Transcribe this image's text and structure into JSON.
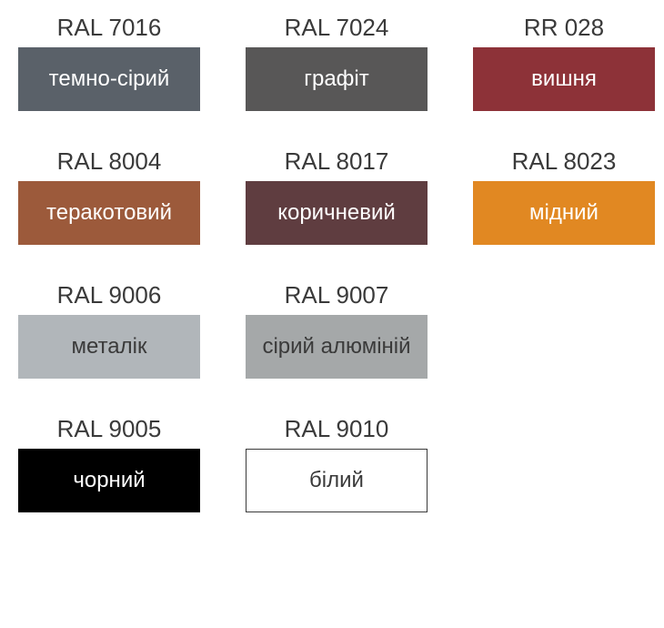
{
  "layout": {
    "columns": 3,
    "rows": 4,
    "swatch_width": 200,
    "swatch_height": 70,
    "code_fontsize": 26,
    "name_fontsize": 24,
    "code_color": "#3a3a3a",
    "background": "#ffffff"
  },
  "swatches": [
    {
      "code": "RAL 7016",
      "name": "темно-сірий",
      "bg_color": "#5a6169",
      "text_color": "#ffffff",
      "border": "none"
    },
    {
      "code": "RAL 7024",
      "name": "графіт",
      "bg_color": "#585757",
      "text_color": "#ffffff",
      "border": "none"
    },
    {
      "code": "RR 028",
      "name": "вишня",
      "bg_color": "#8d3238",
      "text_color": "#ffffff",
      "border": "none"
    },
    {
      "code": "RAL 8004",
      "name": "теракотовий",
      "bg_color": "#9c5a3b",
      "text_color": "#ffffff",
      "border": "none"
    },
    {
      "code": "RAL 8017",
      "name": "коричневий",
      "bg_color": "#5f3d40",
      "text_color": "#ffffff",
      "border": "none"
    },
    {
      "code": "RAL 8023",
      "name": "мідний",
      "bg_color": "#e18822",
      "text_color": "#ffffff",
      "border": "none"
    },
    {
      "code": "RAL 9006",
      "name": "металік",
      "bg_color": "#b1b6ba",
      "text_color": "#3a3a3a",
      "border": "none"
    },
    {
      "code": "RAL 9007",
      "name": "сірий алюміній",
      "bg_color": "#a5a8a9",
      "text_color": "#3a3a3a",
      "border": "none"
    },
    null,
    {
      "code": "RAL 9005",
      "name": "чорний",
      "bg_color": "#000000",
      "text_color": "#ffffff",
      "border": "none"
    },
    {
      "code": "RAL 9010",
      "name": "білий",
      "bg_color": "#ffffff",
      "text_color": "#3a3a3a",
      "border": "1px solid #3a3a3a"
    },
    null
  ]
}
